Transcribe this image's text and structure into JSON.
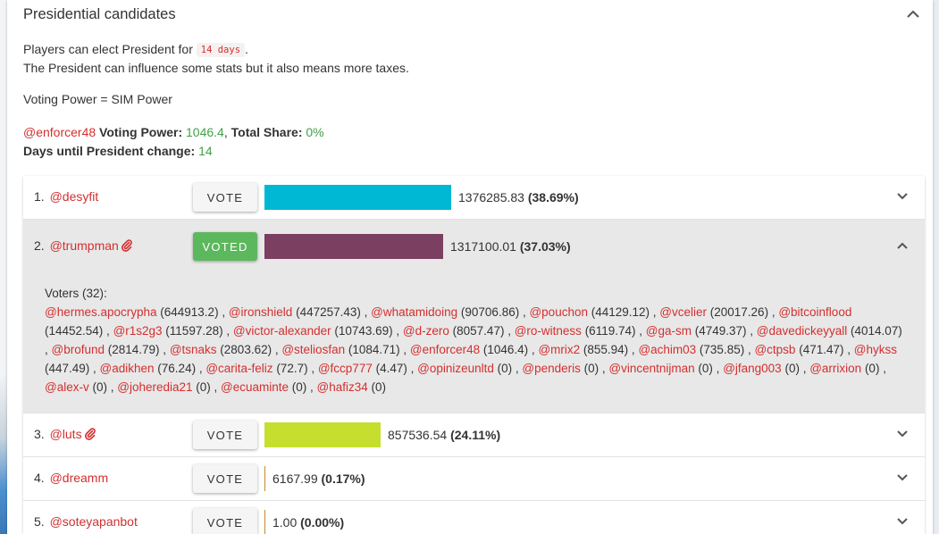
{
  "panel": {
    "title": "Presidential candidates",
    "intro_prefix": "Players can elect President for",
    "intro_days_chip": "14 days",
    "intro_suffix": ".",
    "intro_line2": "The President can influence some stats but it also means more taxes.",
    "voting_power_formula": "Voting Power = SIM Power"
  },
  "user_stats": {
    "username": "@enforcer48",
    "voting_power_label": "Voting Power:",
    "voting_power_value": "1046.4",
    "separator": ",",
    "total_share_label": "Total Share:",
    "total_share_value": "0%",
    "days_label": "Days until President change:",
    "days_value": "14"
  },
  "candidates": [
    {
      "rank": "1.",
      "name": "@desyfit",
      "has_clip": false,
      "button": "VOTE",
      "voted": false,
      "votes": "1376285.83",
      "share": "(38.69%)",
      "share_fraction": 0.3869,
      "bar_color": "#00b8d4"
    },
    {
      "rank": "2.",
      "name": "@trumpman",
      "has_clip": true,
      "button": "VOTED",
      "voted": true,
      "votes": "1317100.01",
      "share": "(37.03%)",
      "share_fraction": 0.3703,
      "bar_color": "#7b3f61"
    },
    {
      "rank": "3.",
      "name": "@luts",
      "has_clip": true,
      "button": "VOTE",
      "voted": false,
      "votes": "857536.54",
      "share": "(24.11%)",
      "share_fraction": 0.2411,
      "bar_color": "#c6df2e"
    },
    {
      "rank": "4.",
      "name": "@dreamm",
      "has_clip": false,
      "button": "VOTE",
      "voted": false,
      "votes": "6167.99",
      "share": "(0.17%)",
      "share_fraction": 0.0017,
      "bar_color": "#c58b2c"
    },
    {
      "rank": "5.",
      "name": "@soteyapanbot",
      "has_clip": false,
      "button": "VOTE",
      "voted": false,
      "votes": "1.00",
      "share": "(0.00%)",
      "share_fraction": 0.0,
      "bar_color": "#c58b2c"
    }
  ],
  "voters_panel": {
    "label": "Voters (32):",
    "voters": [
      {
        "name": "@hermes.apocrypha",
        "power": "(644913.2)"
      },
      {
        "name": "@ironshield",
        "power": "(447257.43)"
      },
      {
        "name": "@whatamidoing",
        "power": "(90706.86)"
      },
      {
        "name": "@pouchon",
        "power": "(44129.12)"
      },
      {
        "name": "@vcelier",
        "power": "(20017.26)"
      },
      {
        "name": "@bitcoinflood",
        "power": "(14452.54)"
      },
      {
        "name": "@r1s2g3",
        "power": "(11597.28)"
      },
      {
        "name": "@victor-alexander",
        "power": "(10743.69)"
      },
      {
        "name": "@d-zero",
        "power": "(8057.47)"
      },
      {
        "name": "@ro-witness",
        "power": "(6119.74)"
      },
      {
        "name": "@ga-sm",
        "power": "(4749.37)"
      },
      {
        "name": "@davedickeyyall",
        "power": "(4014.07)"
      },
      {
        "name": "@brofund",
        "power": "(2814.79)"
      },
      {
        "name": "@tsnaks",
        "power": "(2803.62)"
      },
      {
        "name": "@steliosfan",
        "power": "(1084.71)"
      },
      {
        "name": "@enforcer48",
        "power": "(1046.4)"
      },
      {
        "name": "@mrix2",
        "power": "(855.94)"
      },
      {
        "name": "@achim03",
        "power": "(735.85)"
      },
      {
        "name": "@ctpsb",
        "power": "(471.47)"
      },
      {
        "name": "@hykss",
        "power": "(447.49)"
      },
      {
        "name": "@adikhen",
        "power": "(76.24)"
      },
      {
        "name": "@carita-feliz",
        "power": "(72.7)"
      },
      {
        "name": "@fccp777",
        "power": "(4.47)"
      },
      {
        "name": "@opinizeunltd",
        "power": "(0)"
      },
      {
        "name": "@penderis",
        "power": "(0)"
      },
      {
        "name": "@vincentnijman",
        "power": "(0)"
      },
      {
        "name": "@jfang003",
        "power": "(0)"
      },
      {
        "name": "@arrixion",
        "power": "(0)"
      },
      {
        "name": "@alex-v",
        "power": "(0)"
      },
      {
        "name": "@joheredia21",
        "power": "(0)"
      },
      {
        "name": "@ecuaminte",
        "power": "(0)"
      },
      {
        "name": "@hafiz34",
        "power": "(0)"
      }
    ]
  },
  "icons": {
    "collapse": "chevron-up-icon",
    "expand": "chevron-down-icon",
    "clip": "paperclip-icon"
  }
}
